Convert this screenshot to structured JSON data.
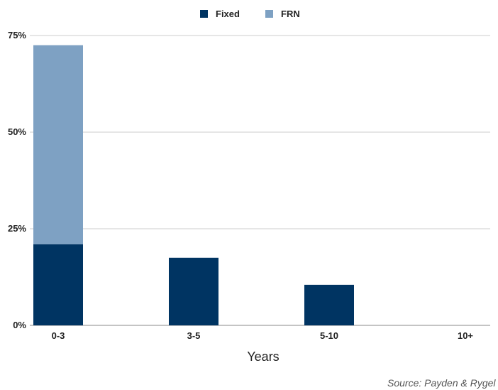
{
  "chart_data": {
    "type": "bar",
    "stacked": true,
    "categories": [
      "0-3",
      "3-5",
      "5-10",
      "10+"
    ],
    "series": [
      {
        "name": "Fixed",
        "color": "#003462",
        "values": [
          21,
          17.5,
          10.5,
          0
        ]
      },
      {
        "name": "FRN",
        "color": "#7ea1c3",
        "values": [
          51.5,
          0,
          0,
          0
        ]
      }
    ],
    "xlabel": "Years",
    "ylabel": "",
    "ylim": [
      0,
      75
    ],
    "yticks": [
      0,
      25,
      50,
      75
    ],
    "ytick_labels": [
      "0%",
      "25%",
      "50%",
      "75%"
    ],
    "grid": true,
    "legend_position": "top-center"
  },
  "source": "Source: Payden & Rygel",
  "colors": {
    "grid": "#cccccc",
    "axis": "#888888"
  }
}
